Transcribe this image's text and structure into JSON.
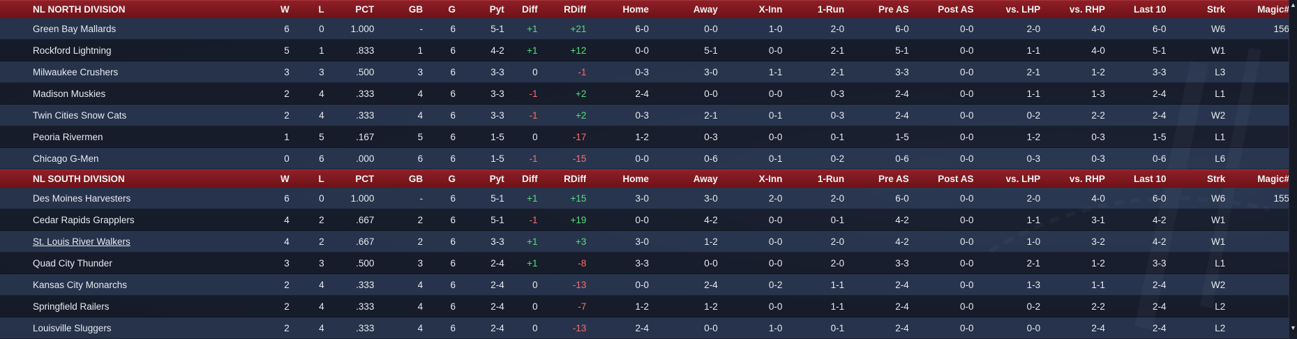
{
  "columns": {
    "w": "W",
    "l": "L",
    "pct": "PCT",
    "gb": "GB",
    "g": "G",
    "pyt": "Pyt",
    "diff": "Diff",
    "rdiff": "RDiff",
    "home": "Home",
    "away": "Away",
    "xinn": "X-Inn",
    "onerun": "1-Run",
    "preas": "Pre AS",
    "postas": "Post AS",
    "lhp": "vs. LHP",
    "rhp": "vs. RHP",
    "last10": "Last 10",
    "strk": "Strk",
    "magic": "Magic#"
  },
  "divisions": [
    {
      "name": "NL NORTH DIVISION",
      "teams": [
        {
          "team": "Green Bay  Mallards",
          "w": "6",
          "l": "0",
          "pct": "1.000",
          "gb": "-",
          "g": "6",
          "pyt": "5-1",
          "diff": "+1",
          "rdiff": "+21",
          "home": "6-0",
          "away": "0-0",
          "xinn": "1-0",
          "onerun": "2-0",
          "preas": "6-0",
          "postas": "0-0",
          "lhp": "2-0",
          "rhp": "4-0",
          "last10": "6-0",
          "strk": "W6",
          "magic": "156"
        },
        {
          "team": "Rockford Lightning",
          "w": "5",
          "l": "1",
          "pct": ".833",
          "gb": "1",
          "g": "6",
          "pyt": "4-2",
          "diff": "+1",
          "rdiff": "+12",
          "home": "0-0",
          "away": "5-1",
          "xinn": "0-0",
          "onerun": "2-1",
          "preas": "5-1",
          "postas": "0-0",
          "lhp": "1-1",
          "rhp": "4-0",
          "last10": "5-1",
          "strk": "W1",
          "magic": ""
        },
        {
          "team": "Milwaukee Crushers",
          "w": "3",
          "l": "3",
          "pct": ".500",
          "gb": "3",
          "g": "6",
          "pyt": "3-3",
          "diff": "0",
          "rdiff": "-1",
          "home": "0-3",
          "away": "3-0",
          "xinn": "1-1",
          "onerun": "2-1",
          "preas": "3-3",
          "postas": "0-0",
          "lhp": "2-1",
          "rhp": "1-2",
          "last10": "3-3",
          "strk": "L3",
          "magic": ""
        },
        {
          "team": "Madison Muskies",
          "w": "2",
          "l": "4",
          "pct": ".333",
          "gb": "4",
          "g": "6",
          "pyt": "3-3",
          "diff": "-1",
          "rdiff": "+2",
          "home": "2-4",
          "away": "0-0",
          "xinn": "0-0",
          "onerun": "0-3",
          "preas": "2-4",
          "postas": "0-0",
          "lhp": "1-1",
          "rhp": "1-3",
          "last10": "2-4",
          "strk": "L1",
          "magic": ""
        },
        {
          "team": "Twin Cities Snow Cats",
          "w": "2",
          "l": "4",
          "pct": ".333",
          "gb": "4",
          "g": "6",
          "pyt": "3-3",
          "diff": "-1",
          "rdiff": "+2",
          "home": "0-3",
          "away": "2-1",
          "xinn": "0-1",
          "onerun": "0-3",
          "preas": "2-4",
          "postas": "0-0",
          "lhp": "0-2",
          "rhp": "2-2",
          "last10": "2-4",
          "strk": "W2",
          "magic": ""
        },
        {
          "team": "Peoria Rivermen",
          "w": "1",
          "l": "5",
          "pct": ".167",
          "gb": "5",
          "g": "6",
          "pyt": "1-5",
          "diff": "0",
          "rdiff": "-17",
          "home": "1-2",
          "away": "0-3",
          "xinn": "0-0",
          "onerun": "0-1",
          "preas": "1-5",
          "postas": "0-0",
          "lhp": "1-2",
          "rhp": "0-3",
          "last10": "1-5",
          "strk": "L1",
          "magic": ""
        },
        {
          "team": "Chicago G-Men",
          "w": "0",
          "l": "6",
          "pct": ".000",
          "gb": "6",
          "g": "6",
          "pyt": "1-5",
          "diff": "-1",
          "rdiff": "-15",
          "home": "0-0",
          "away": "0-6",
          "xinn": "0-1",
          "onerun": "0-2",
          "preas": "0-6",
          "postas": "0-0",
          "lhp": "0-3",
          "rhp": "0-3",
          "last10": "0-6",
          "strk": "L6",
          "magic": ""
        }
      ]
    },
    {
      "name": "NL SOUTH DIVISION",
      "teams": [
        {
          "team": "Des Moines Harvesters",
          "w": "6",
          "l": "0",
          "pct": "1.000",
          "gb": "-",
          "g": "6",
          "pyt": "5-1",
          "diff": "+1",
          "rdiff": "+15",
          "home": "3-0",
          "away": "3-0",
          "xinn": "2-0",
          "onerun": "2-0",
          "preas": "6-0",
          "postas": "0-0",
          "lhp": "2-0",
          "rhp": "4-0",
          "last10": "6-0",
          "strk": "W6",
          "magic": "155"
        },
        {
          "team": "Cedar Rapids Grapplers",
          "w": "4",
          "l": "2",
          "pct": ".667",
          "gb": "2",
          "g": "6",
          "pyt": "5-1",
          "diff": "-1",
          "rdiff": "+19",
          "home": "0-0",
          "away": "4-2",
          "xinn": "0-0",
          "onerun": "0-1",
          "preas": "4-2",
          "postas": "0-0",
          "lhp": "1-1",
          "rhp": "3-1",
          "last10": "4-2",
          "strk": "W1",
          "magic": ""
        },
        {
          "team": "St. Louis River Walkers",
          "w": "4",
          "l": "2",
          "pct": ".667",
          "gb": "2",
          "g": "6",
          "pyt": "3-3",
          "diff": "+1",
          "rdiff": "+3",
          "home": "3-0",
          "away": "1-2",
          "xinn": "0-0",
          "onerun": "2-0",
          "preas": "4-2",
          "postas": "0-0",
          "lhp": "1-0",
          "rhp": "3-2",
          "last10": "4-2",
          "strk": "W1",
          "magic": "",
          "link": true
        },
        {
          "team": "Quad City Thunder",
          "w": "3",
          "l": "3",
          "pct": ".500",
          "gb": "3",
          "g": "6",
          "pyt": "2-4",
          "diff": "+1",
          "rdiff": "-8",
          "home": "3-3",
          "away": "0-0",
          "xinn": "0-0",
          "onerun": "2-0",
          "preas": "3-3",
          "postas": "0-0",
          "lhp": "2-1",
          "rhp": "1-2",
          "last10": "3-3",
          "strk": "L1",
          "magic": ""
        },
        {
          "team": "Kansas City Monarchs",
          "w": "2",
          "l": "4",
          "pct": ".333",
          "gb": "4",
          "g": "6",
          "pyt": "2-4",
          "diff": "0",
          "rdiff": "-13",
          "home": "0-0",
          "away": "2-4",
          "xinn": "0-2",
          "onerun": "1-1",
          "preas": "2-4",
          "postas": "0-0",
          "lhp": "1-3",
          "rhp": "1-1",
          "last10": "2-4",
          "strk": "W2",
          "magic": ""
        },
        {
          "team": "Springfield Railers",
          "w": "2",
          "l": "4",
          "pct": ".333",
          "gb": "4",
          "g": "6",
          "pyt": "2-4",
          "diff": "0",
          "rdiff": "-7",
          "home": "1-2",
          "away": "1-2",
          "xinn": "0-0",
          "onerun": "1-1",
          "preas": "2-4",
          "postas": "0-0",
          "lhp": "0-2",
          "rhp": "2-2",
          "last10": "2-4",
          "strk": "L2",
          "magic": ""
        },
        {
          "team": "Louisville Sluggers",
          "w": "2",
          "l": "4",
          "pct": ".333",
          "gb": "4",
          "g": "6",
          "pyt": "2-4",
          "diff": "0",
          "rdiff": "-13",
          "home": "2-4",
          "away": "0-0",
          "xinn": "1-0",
          "onerun": "0-1",
          "preas": "2-4",
          "postas": "0-0",
          "lhp": "0-0",
          "rhp": "2-4",
          "last10": "2-4",
          "strk": "L2",
          "magic": ""
        }
      ]
    }
  ],
  "colors": {
    "header_bg": "#7a161d",
    "positive": "#52e07a",
    "negative": "#ff6d6d"
  },
  "scrollbar": {
    "up_icon": "scroll-up-icon",
    "down_icon": "scroll-down-icon"
  }
}
